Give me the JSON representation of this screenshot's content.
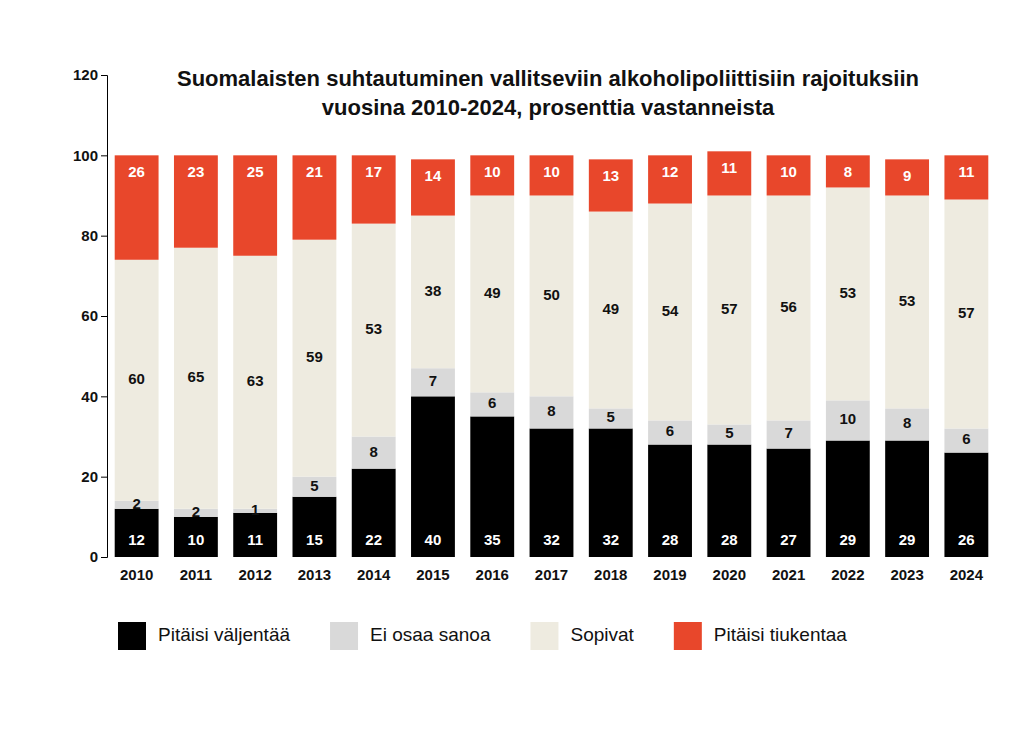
{
  "chart_data": {
    "type": "bar",
    "title": "Suomalaisten suhtautuminen vallitseviin alkoholipoliittisiin rajoituksiin vuosina 2010-2024, prosenttia vastanneista",
    "categories": [
      "2010",
      "2011",
      "2012",
      "2013",
      "2014",
      "2015",
      "2016",
      "2017",
      "2018",
      "2019",
      "2020",
      "2021",
      "2022",
      "2023",
      "2024"
    ],
    "series": [
      {
        "name": "Pitäisi väljentää",
        "color": "#000000",
        "values": [
          12,
          10,
          11,
          15,
          22,
          40,
          35,
          32,
          32,
          28,
          28,
          27,
          29,
          29,
          26
        ]
      },
      {
        "name": "Ei osaa sanoa",
        "color": "#d9d9d9",
        "values": [
          2,
          2,
          1,
          5,
          8,
          7,
          6,
          8,
          5,
          6,
          5,
          7,
          10,
          8,
          6
        ]
      },
      {
        "name": "Sopivat",
        "color": "#eeebe0",
        "values": [
          60,
          65,
          63,
          59,
          53,
          38,
          49,
          50,
          49,
          54,
          57,
          56,
          53,
          53,
          57
        ]
      },
      {
        "name": "Pitäisi tiukentaa",
        "color": "#e8472b",
        "values": [
          26,
          23,
          25,
          21,
          17,
          14,
          10,
          10,
          13,
          12,
          11,
          10,
          8,
          9,
          11
        ]
      }
    ],
    "ylim": [
      0,
      120
    ],
    "yticks": [
      0,
      20,
      40,
      60,
      80,
      100,
      120
    ],
    "stacked": true,
    "data_labels": true,
    "grid": false,
    "legend": "bottom"
  }
}
